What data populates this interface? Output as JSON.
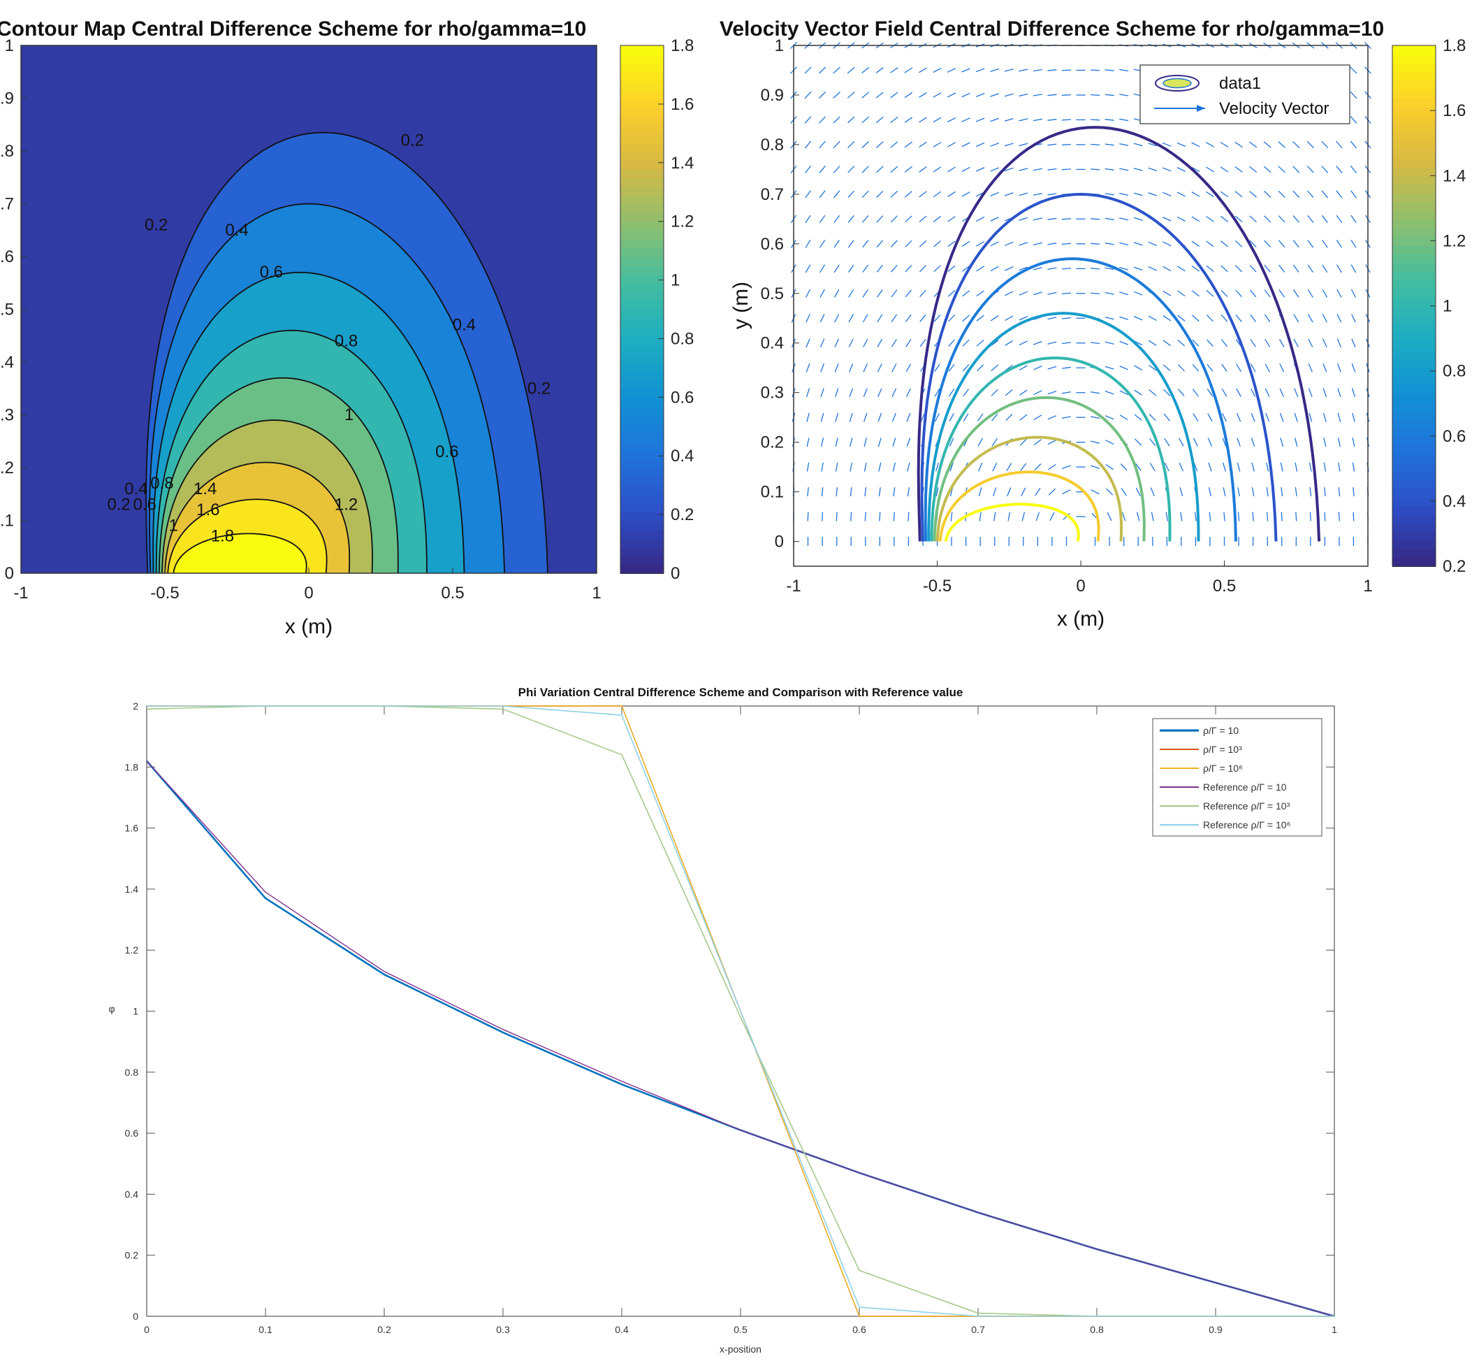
{
  "chart_data": [
    {
      "type": "heatmap",
      "subtype": "filled-contour",
      "title": "Contour Map Central Difference Scheme for rho/gamma=10",
      "xlabel": "x (m)",
      "ylabel": "",
      "xlim": [
        -1,
        1
      ],
      "ylim": [
        0,
        1
      ],
      "xticks": [
        "-1",
        "-0.5",
        "0",
        "0.5",
        "1"
      ],
      "yticks": [
        "0",
        ".1",
        ".2",
        ".3",
        ".4",
        ".5",
        ".6",
        ".7",
        ".8",
        ".9",
        "1"
      ],
      "colorbar": {
        "min": 0,
        "max": 1.8,
        "ticks": [
          "0",
          "0.2",
          "0.4",
          "0.6",
          "0.8",
          "1",
          "1.2",
          "1.4",
          "1.6",
          "1.8"
        ]
      },
      "contour_levels": [
        0.2,
        0.4,
        0.6,
        0.8,
        1.0,
        1.2,
        1.4,
        1.6,
        1.8
      ],
      "contours": [
        {
          "level": 0.2,
          "xl": -0.56,
          "xr": 0.83,
          "h": 0.835,
          "xc": 0.05
        },
        {
          "level": 0.4,
          "xl": -0.55,
          "xr": 0.68,
          "h": 0.7,
          "xc": 0.0
        },
        {
          "level": 0.6,
          "xl": -0.54,
          "xr": 0.54,
          "h": 0.57,
          "xc": -0.03
        },
        {
          "level": 0.8,
          "xl": -0.53,
          "xr": 0.41,
          "h": 0.46,
          "xc": -0.06
        },
        {
          "level": 1.0,
          "xl": -0.52,
          "xr": 0.31,
          "h": 0.37,
          "xc": -0.09
        },
        {
          "level": 1.2,
          "xl": -0.51,
          "xr": 0.22,
          "h": 0.29,
          "xc": -0.12
        },
        {
          "level": 1.4,
          "xl": -0.5,
          "xr": 0.14,
          "h": 0.21,
          "xc": -0.15
        },
        {
          "level": 1.6,
          "xl": -0.49,
          "xr": 0.06,
          "h": 0.14,
          "xc": -0.18
        },
        {
          "level": 1.8,
          "xl": -0.47,
          "xr": -0.01,
          "h": 0.075,
          "xc": -0.21
        }
      ],
      "contour_text_labels": [
        {
          "text": "0.2",
          "x": 0.36,
          "y": 0.81
        },
        {
          "text": "0.2",
          "x": -0.53,
          "y": 0.65
        },
        {
          "text": "0.4",
          "x": -0.25,
          "y": 0.64
        },
        {
          "text": "0.6",
          "x": -0.13,
          "y": 0.56
        },
        {
          "text": "0.8",
          "x": 0.13,
          "y": 0.43
        },
        {
          "text": "0.4",
          "x": 0.54,
          "y": 0.46
        },
        {
          "text": "0.2",
          "x": 0.8,
          "y": 0.34
        },
        {
          "text": "1",
          "x": 0.14,
          "y": 0.29
        },
        {
          "text": "0.6",
          "x": 0.48,
          "y": 0.22
        },
        {
          "text": "1.2",
          "x": 0.13,
          "y": 0.12
        },
        {
          "text": "1.4",
          "x": -0.36,
          "y": 0.15
        },
        {
          "text": "1.6",
          "x": -0.35,
          "y": 0.11
        },
        {
          "text": "1.8",
          "x": -0.3,
          "y": 0.06
        },
        {
          "text": "0.2",
          "x": -0.66,
          "y": 0.12
        },
        {
          "text": "0.4",
          "x": -0.6,
          "y": 0.15
        },
        {
          "text": "0.6",
          "x": -0.57,
          "y": 0.12
        },
        {
          "text": "0.8",
          "x": -0.51,
          "y": 0.16
        },
        {
          "text": "1",
          "x": -0.47,
          "y": 0.08
        }
      ]
    },
    {
      "type": "scatter",
      "subtype": "contour-with-quiver",
      "title": "Velocity Vector Field Central Difference Scheme for rho/gamma=10",
      "xlabel": "x (m)",
      "ylabel": "y (m)",
      "xlim": [
        -1,
        1
      ],
      "ylim": [
        -0.05,
        1
      ],
      "xticks": [
        "-1",
        "-0.5",
        "0",
        "0.5",
        "1"
      ],
      "yticks": [
        "0",
        "0.1",
        "0.2",
        "0.3",
        "0.4",
        "0.5",
        "0.6",
        "0.7",
        "0.8",
        "0.9",
        "1"
      ],
      "colorbar": {
        "min": 0.2,
        "max": 1.8,
        "ticks": [
          "0.2",
          "0.4",
          "0.6",
          "0.8",
          "1",
          "1.2",
          "1.4",
          "1.6",
          "1.8"
        ]
      },
      "legend": {
        "position": "top-right",
        "entries": [
          "data1",
          "Velocity Vector"
        ]
      },
      "contour_levels": [
        0.2,
        0.4,
        0.6,
        0.8,
        1.0,
        1.2,
        1.4,
        1.6,
        1.8
      ],
      "quiver": {
        "field": "rotational",
        "center_x": 0,
        "center_y": 0,
        "x_range": [
          -1,
          1
        ],
        "y_range": [
          0,
          1
        ]
      }
    },
    {
      "type": "line",
      "title": "Phi Variation Central Difference Scheme and Comparison with Reference value",
      "xlabel": "x-position",
      "ylabel": "φ",
      "xlim": [
        0,
        1
      ],
      "ylim": [
        0,
        2
      ],
      "xticks": [
        "0",
        "0.1",
        "0.2",
        "0.3",
        "0.4",
        "0.5",
        "0.6",
        "0.7",
        "0.8",
        "0.9",
        "1"
      ],
      "yticks": [
        "0",
        "0.2",
        "0.4",
        "0.6",
        "0.8",
        "1",
        "1.2",
        "1.4",
        "1.6",
        "1.8",
        "2"
      ],
      "legend": {
        "position": "top-right"
      },
      "x": [
        0,
        0.1,
        0.2,
        0.3,
        0.4,
        0.5,
        0.6,
        0.7,
        0.8,
        0.9,
        1.0
      ],
      "series": [
        {
          "name": "ρ/Γ = 10",
          "color": "#0072bd",
          "width": 2.6,
          "values": [
            1.82,
            1.37,
            1.12,
            0.93,
            0.76,
            0.61,
            0.47,
            0.34,
            0.22,
            0.11,
            0.0
          ]
        },
        {
          "name": "ρ/Γ = 10³",
          "color": "#d95319",
          "width": 1.4,
          "values": [
            2.0,
            2.0,
            2.0,
            2.0,
            2.0,
            1.0,
            0.0,
            0.0,
            0.0,
            0.0,
            0.0
          ]
        },
        {
          "name": "ρ/Γ = 10⁶",
          "color": "#edb120",
          "width": 1.4,
          "values": [
            2.0,
            2.0,
            2.0,
            2.0,
            2.0,
            1.0,
            0.0,
            0.0,
            0.0,
            0.0,
            0.0
          ]
        },
        {
          "name": "Reference ρ/Γ = 10",
          "color": "#7e2f8e",
          "width": 1.4,
          "values": [
            1.82,
            1.39,
            1.13,
            0.94,
            0.77,
            0.61,
            0.47,
            0.34,
            0.22,
            0.11,
            0.0
          ]
        },
        {
          "name": "Reference ρ/Γ = 10³",
          "color": "#a6c98a",
          "width": 1.6,
          "values": [
            1.99,
            2.0,
            2.0,
            1.99,
            1.84,
            0.98,
            0.15,
            0.01,
            0.0,
            0.0,
            0.0
          ]
        },
        {
          "name": "Reference ρ/Γ = 10⁶",
          "color": "#8ed1e6",
          "width": 1.6,
          "values": [
            2.0,
            2.0,
            2.0,
            2.0,
            1.97,
            1.0,
            0.03,
            0.0,
            0.0,
            0.0,
            0.0
          ]
        }
      ]
    }
  ],
  "colors": {
    "parula": [
      "#352a87",
      "#2d4fc8",
      "#1f74db",
      "#1192d3",
      "#1eaec0",
      "#45be9e",
      "#8fbf6e",
      "#d6b944",
      "#fbce2b",
      "#f9fb0e"
    ]
  }
}
